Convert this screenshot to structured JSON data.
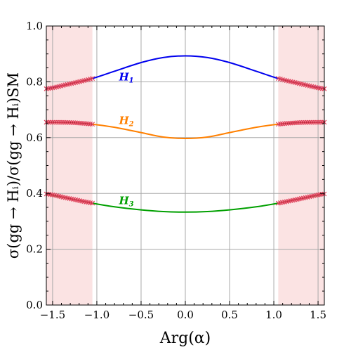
{
  "chart_data": {
    "type": "line",
    "xlabel": "Arg(α)",
    "ylabel": "σ(gg → Hᵢ)/σ(gg → Hᵢ)SM",
    "xlim": [
      -1.5708,
      1.5708
    ],
    "ylim": [
      0.0,
      1.0
    ],
    "grid": true,
    "x_ticks": [
      -1.5,
      -1.0,
      -0.5,
      0.0,
      0.5,
      1.0,
      1.5
    ],
    "x_tick_labels": [
      "−1.5",
      "−1.0",
      "−0.5",
      "0.0",
      "0.5",
      "1.0",
      "1.5"
    ],
    "y_ticks": [
      0.0,
      0.2,
      0.4,
      0.6,
      0.8,
      1.0
    ],
    "y_tick_labels": [
      "0.0",
      "0.2",
      "0.4",
      "0.6",
      "0.8",
      "1.0"
    ],
    "excluded_regions": [
      [
        -1.5708,
        -1.05
      ],
      [
        1.05,
        1.5708
      ]
    ],
    "excluded_color": "#fbe3e3",
    "marker_color": "#e0405a",
    "series": [
      {
        "name": "H1",
        "label_main": "H",
        "label_sub": "1",
        "color": "#0000ee",
        "label_position": [
          -0.75,
          0.805
        ],
        "x": [
          -1.5708,
          -1.3,
          -1.05,
          -0.8,
          -0.5,
          -0.25,
          0.0,
          0.25,
          0.5,
          0.8,
          1.05,
          1.3,
          1.5708
        ],
        "values": [
          0.775,
          0.793,
          0.812,
          0.838,
          0.869,
          0.887,
          0.893,
          0.887,
          0.869,
          0.838,
          0.812,
          0.793,
          0.775
        ]
      },
      {
        "name": "H2",
        "label_main": "H",
        "label_sub": "2",
        "color": "#ff8000",
        "label_position": [
          -0.75,
          0.648
        ],
        "x": [
          -1.5708,
          -1.3,
          -1.05,
          -0.8,
          -0.5,
          -0.25,
          0.0,
          0.25,
          0.5,
          0.8,
          1.05,
          1.3,
          1.5708
        ],
        "values": [
          0.655,
          0.654,
          0.648,
          0.637,
          0.618,
          0.602,
          0.597,
          0.602,
          0.618,
          0.637,
          0.648,
          0.654,
          0.655
        ]
      },
      {
        "name": "H3",
        "label_main": "H",
        "label_sub": "3",
        "color": "#00a000",
        "label_position": [
          -0.75,
          0.362
        ],
        "x": [
          -1.5708,
          -1.3,
          -1.05,
          -0.8,
          -0.5,
          -0.25,
          0.0,
          0.25,
          0.5,
          0.8,
          1.05,
          1.3,
          1.5708
        ],
        "values": [
          0.398,
          0.381,
          0.365,
          0.352,
          0.341,
          0.335,
          0.333,
          0.335,
          0.341,
          0.352,
          0.365,
          0.381,
          0.398
        ]
      }
    ]
  }
}
